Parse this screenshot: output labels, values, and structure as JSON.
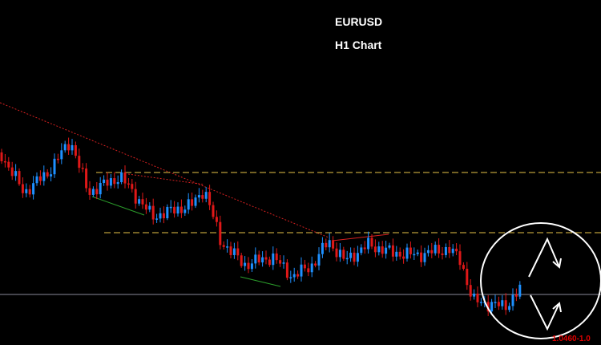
{
  "header": {
    "symbol": "EURUSD",
    "timeframe": "H1 Chart"
  },
  "price_label": "1.0460-1.0"
}
